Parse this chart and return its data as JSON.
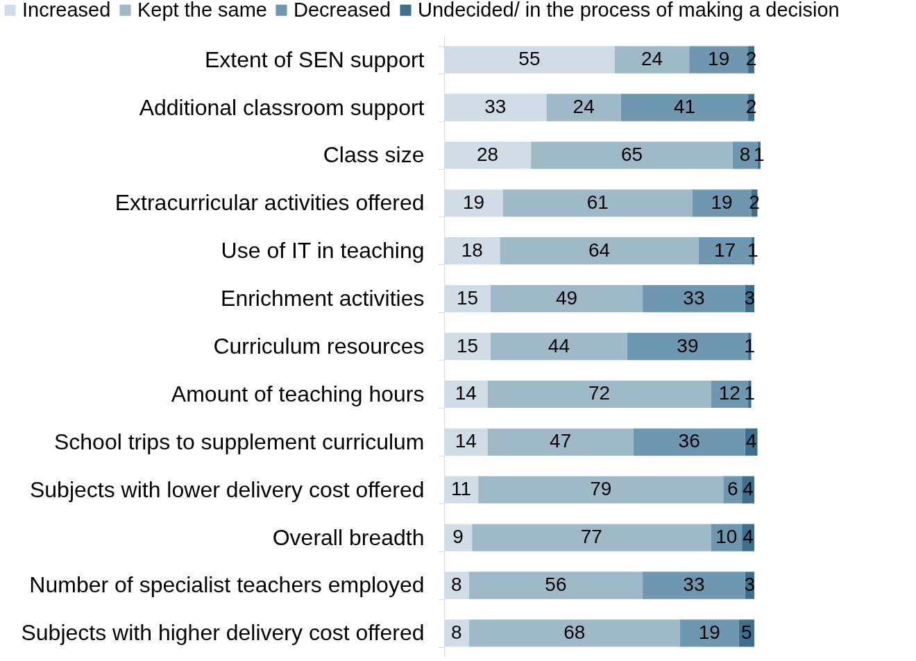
{
  "chart_data": {
    "type": "bar",
    "orientation": "horizontal",
    "stacked": true,
    "data_labels": true,
    "legend": "top",
    "tick_labels": "y",
    "grid": false,
    "categories": [
      "Extent of SEN support",
      "Additional classroom support",
      "Class size",
      "Extracurricular activities offered",
      "Use of IT in teaching",
      "Enrichment activities",
      "Curriculum resources",
      "Amount of teaching hours",
      "School trips to supplement curriculum",
      "Subjects with lower delivery cost offered",
      "Overall breadth",
      "Number of specialist teachers employed",
      "Subjects with higher delivery cost offered"
    ],
    "series": [
      {
        "name": "Increased",
        "color": "#d0dde6",
        "values": [
          55,
          33,
          28,
          19,
          18,
          15,
          15,
          14,
          14,
          11,
          9,
          8,
          8
        ]
      },
      {
        "name": "Kept the same",
        "color": "#a0b9c9",
        "values": [
          24,
          24,
          65,
          61,
          64,
          49,
          44,
          72,
          47,
          79,
          77,
          56,
          68
        ]
      },
      {
        "name": "Decreased",
        "color": "#7097b0",
        "values": [
          19,
          41,
          8,
          19,
          17,
          33,
          39,
          12,
          36,
          6,
          10,
          33,
          19
        ]
      },
      {
        "name": "Undecided/ in the process of making a decision",
        "color": "#3f6f8f",
        "values": [
          2,
          2,
          1,
          2,
          1,
          3,
          1,
          1,
          4,
          4,
          4,
          3,
          5
        ]
      }
    ]
  }
}
